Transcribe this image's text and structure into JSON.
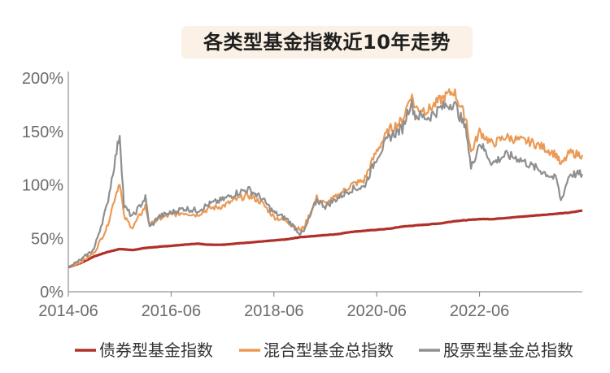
{
  "chart_data": {
    "type": "line",
    "title": "各类型基金指数近10年走势",
    "xlabel": "",
    "ylabel": "",
    "x_tick_labels": [
      "2014-06",
      "2016-06",
      "2018-06",
      "2020-06",
      "2022-06"
    ],
    "y_tick_labels": [
      "0%",
      "50%",
      "100%",
      "150%",
      "200%"
    ],
    "x_range": [
      "2014-06",
      "2024-06"
    ],
    "ylim": [
      0,
      200
    ],
    "y_unit": "%",
    "grid": false,
    "legend_position": "bottom",
    "series": [
      {
        "name": "债券型基金指数",
        "color": "#b0302a",
        "x": [
          "2014-06",
          "2014-09",
          "2014-12",
          "2015-03",
          "2015-06",
          "2015-09",
          "2015-12",
          "2016-03",
          "2016-06",
          "2016-09",
          "2016-12",
          "2017-03",
          "2017-06",
          "2017-09",
          "2017-12",
          "2018-03",
          "2018-06",
          "2018-09",
          "2018-12",
          "2019-03",
          "2019-06",
          "2019-09",
          "2019-12",
          "2020-03",
          "2020-06",
          "2020-09",
          "2020-12",
          "2021-03",
          "2021-06",
          "2021-09",
          "2021-12",
          "2022-03",
          "2022-06",
          "2022-09",
          "2022-12",
          "2023-03",
          "2023-06",
          "2023-09",
          "2023-12",
          "2024-03",
          "2024-06"
        ],
        "values": [
          23,
          27,
          33,
          37,
          40,
          39,
          41,
          42,
          43,
          44,
          45,
          44,
          44,
          45,
          46,
          47,
          48,
          49,
          51,
          52,
          53,
          54,
          56,
          57,
          58,
          59,
          61,
          62,
          63,
          64,
          66,
          67,
          68,
          68,
          69,
          70,
          71,
          72,
          73,
          74,
          76
        ]
      },
      {
        "name": "混合型基金总指数",
        "color": "#eb9a56",
        "x": [
          "2014-06",
          "2014-09",
          "2014-12",
          "2015-03",
          "2015-05",
          "2015-06",
          "2015-07",
          "2015-09",
          "2015-12",
          "2016-01",
          "2016-03",
          "2016-06",
          "2016-09",
          "2016-12",
          "2017-03",
          "2017-06",
          "2017-09",
          "2017-12",
          "2018-03",
          "2018-06",
          "2018-09",
          "2018-12",
          "2019-01",
          "2019-04",
          "2019-06",
          "2019-09",
          "2019-12",
          "2020-03",
          "2020-06",
          "2020-09",
          "2020-12",
          "2021-02",
          "2021-03",
          "2021-06",
          "2021-09",
          "2021-12",
          "2022-03",
          "2022-04",
          "2022-06",
          "2022-09",
          "2022-12",
          "2023-03",
          "2023-06",
          "2023-09",
          "2023-12",
          "2024-01",
          "2024-03",
          "2024-06"
        ],
        "values": [
          23,
          28,
          36,
          60,
          90,
          103,
          70,
          60,
          80,
          62,
          68,
          72,
          74,
          72,
          78,
          80,
          86,
          90,
          84,
          70,
          66,
          58,
          60,
          88,
          82,
          90,
          100,
          104,
          132,
          152,
          160,
          185,
          172,
          170,
          180,
          188,
          160,
          130,
          150,
          138,
          145,
          142,
          140,
          135,
          128,
          118,
          130,
          128
        ]
      },
      {
        "name": "股票型基金总指数",
        "color": "#8f8f8f",
        "x": [
          "2014-06",
          "2014-09",
          "2014-12",
          "2015-03",
          "2015-05",
          "2015-06",
          "2015-07",
          "2015-09",
          "2015-12",
          "2016-01",
          "2016-03",
          "2016-06",
          "2016-09",
          "2016-12",
          "2017-03",
          "2017-06",
          "2017-09",
          "2017-12",
          "2018-03",
          "2018-06",
          "2018-09",
          "2018-12",
          "2019-01",
          "2019-04",
          "2019-06",
          "2019-09",
          "2019-12",
          "2020-03",
          "2020-06",
          "2020-09",
          "2020-12",
          "2021-02",
          "2021-03",
          "2021-06",
          "2021-09",
          "2021-12",
          "2022-03",
          "2022-04",
          "2022-06",
          "2022-09",
          "2022-12",
          "2023-03",
          "2023-06",
          "2023-09",
          "2023-12",
          "2024-01",
          "2024-03",
          "2024-06"
        ],
        "values": [
          23,
          30,
          40,
          80,
          125,
          148,
          80,
          70,
          88,
          60,
          70,
          74,
          78,
          76,
          82,
          86,
          92,
          96,
          88,
          74,
          68,
          55,
          56,
          86,
          80,
          88,
          96,
          98,
          126,
          145,
          153,
          178,
          165,
          163,
          172,
          177,
          150,
          115,
          140,
          120,
          128,
          125,
          118,
          112,
          105,
          85,
          110,
          110
        ]
      }
    ]
  }
}
